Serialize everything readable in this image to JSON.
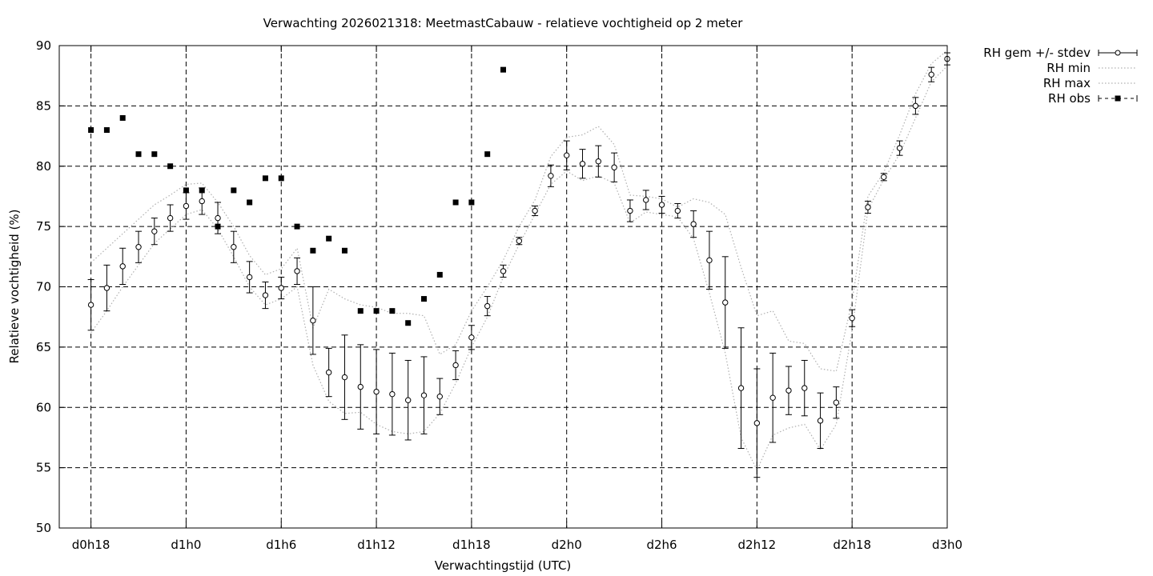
{
  "chart_data": {
    "type": "line",
    "title": "Verwachting 2026021318: MeetmastCabauw - relatieve vochtigheid op 2 meter",
    "xlabel": "Verwachtingstijd (UTC)",
    "ylabel": "Relatieve vochtigheid (%)",
    "ylim": [
      50,
      90
    ],
    "xlim": [
      16,
      72
    ],
    "x_unit": "hours since 2026-02-13 00:00 UTC",
    "grid": true,
    "legend_position": "outside-top-right",
    "x_ticks": [
      {
        "x": 18,
        "label": "d0h18"
      },
      {
        "x": 24,
        "label": "d1h0"
      },
      {
        "x": 30,
        "label": "d1h6"
      },
      {
        "x": 36,
        "label": "d1h12"
      },
      {
        "x": 42,
        "label": "d1h18"
      },
      {
        "x": 48,
        "label": "d2h0"
      },
      {
        "x": 54,
        "label": "d2h6"
      },
      {
        "x": 60,
        "label": "d2h12"
      },
      {
        "x": 66,
        "label": "d2h18"
      },
      {
        "x": 72,
        "label": "d3h0"
      }
    ],
    "y_ticks": [
      50,
      55,
      60,
      65,
      70,
      75,
      80,
      85,
      90
    ],
    "series": [
      {
        "name": "RH gem +/- stdev",
        "style": "errorbars",
        "color": "#000000",
        "x": [
          18,
          19,
          20,
          21,
          22,
          23,
          24,
          25,
          26,
          27,
          28,
          29,
          30,
          31,
          32,
          33,
          34,
          35,
          36,
          37,
          38,
          39,
          40,
          41,
          42,
          43,
          44,
          45,
          46,
          47,
          48,
          49,
          50,
          51,
          52,
          53,
          54,
          55,
          56,
          57,
          58,
          59,
          60,
          61,
          62,
          63,
          64,
          65,
          66,
          67,
          68,
          69,
          70,
          71,
          72
        ],
        "y": [
          68.5,
          69.9,
          71.7,
          73.3,
          74.6,
          75.7,
          76.7,
          77.1,
          75.7,
          73.3,
          70.8,
          69.3,
          69.9,
          71.3,
          67.2,
          62.9,
          62.5,
          61.7,
          61.3,
          61.1,
          60.6,
          61.0,
          60.9,
          63.5,
          65.8,
          68.4,
          71.3,
          73.8,
          76.3,
          79.2,
          80.9,
          80.2,
          80.4,
          79.9,
          76.3,
          77.2,
          76.8,
          76.3,
          75.2,
          72.2,
          68.7,
          61.6,
          58.7,
          60.8,
          61.4,
          61.6,
          58.9,
          60.4,
          67.4,
          76.6,
          79.1,
          81.5,
          85.0,
          87.6,
          88.9
        ],
        "err": [
          2.1,
          1.9,
          1.5,
          1.3,
          1.1,
          1.1,
          1.1,
          1.1,
          1.3,
          1.3,
          1.3,
          1.1,
          0.9,
          1.1,
          2.8,
          2.0,
          3.5,
          3.5,
          3.5,
          3.4,
          3.3,
          3.2,
          1.5,
          1.2,
          1.0,
          0.8,
          0.5,
          0.3,
          0.4,
          0.9,
          1.2,
          1.2,
          1.3,
          1.2,
          0.9,
          0.8,
          0.7,
          0.6,
          1.1,
          2.4,
          3.8,
          5.0,
          4.5,
          3.7,
          2.0,
          2.3,
          2.3,
          1.3,
          0.7,
          0.5,
          0.3,
          0.6,
          0.7,
          0.6,
          0.5
        ]
      },
      {
        "name": "RH min",
        "style": "dotted",
        "color": "#b0b0b0",
        "x": [
          18,
          19,
          20,
          21,
          22,
          23,
          24,
          25,
          26,
          27,
          28,
          29,
          30,
          31,
          32,
          33,
          34,
          35,
          36,
          37,
          38,
          39,
          40,
          41,
          42,
          43,
          44,
          45,
          46,
          47,
          48,
          49,
          50,
          51,
          52,
          53,
          54,
          55,
          56,
          57,
          58,
          59,
          60,
          61,
          62,
          63,
          64,
          65,
          66,
          67,
          68,
          69,
          70,
          71,
          72
        ],
        "y": [
          66.2,
          68.0,
          70.0,
          71.8,
          73.6,
          74.8,
          76.0,
          76.4,
          74.8,
          72.5,
          70.0,
          68.5,
          69.0,
          70.0,
          63.5,
          60.5,
          59.5,
          59.6,
          58.6,
          58.0,
          57.8,
          58.0,
          59.5,
          62.0,
          65.0,
          67.5,
          70.8,
          73.5,
          76.0,
          78.5,
          79.6,
          78.8,
          79.2,
          78.6,
          75.3,
          76.2,
          76.0,
          75.8,
          74.0,
          69.5,
          64.5,
          57.5,
          54.8,
          57.7,
          58.3,
          58.6,
          56.5,
          58.6,
          66.4,
          76.4,
          78.9,
          81.0,
          84.0,
          87.0,
          88.3
        ]
      },
      {
        "name": "RH max",
        "style": "dotted",
        "color": "#b0b0b0",
        "x": [
          18,
          19,
          20,
          21,
          22,
          23,
          24,
          25,
          26,
          27,
          28,
          29,
          30,
          31,
          32,
          33,
          34,
          35,
          36,
          37,
          38,
          39,
          40,
          41,
          42,
          43,
          44,
          45,
          46,
          47,
          48,
          49,
          50,
          51,
          52,
          53,
          54,
          55,
          56,
          57,
          58,
          59,
          60,
          61,
          62,
          63,
          64,
          65,
          66,
          67,
          68,
          69,
          70,
          71,
          72
        ],
        "y": [
          72.0,
          73.2,
          74.4,
          75.6,
          76.8,
          77.6,
          78.5,
          78.6,
          77.0,
          75.0,
          72.6,
          71.0,
          71.5,
          73.2,
          66.6,
          69.8,
          69.0,
          68.5,
          68.3,
          67.8,
          67.8,
          67.6,
          64.4,
          65.2,
          68.0,
          70.0,
          72.2,
          75.0,
          77.2,
          80.8,
          82.4,
          82.6,
          83.3,
          81.8,
          77.6,
          77.5,
          77.3,
          76.6,
          77.3,
          77.0,
          76.0,
          71.6,
          67.6,
          68.0,
          65.5,
          65.3,
          63.2,
          63.0,
          68.8,
          77.5,
          79.5,
          82.6,
          86.0,
          88.5,
          89.6
        ]
      },
      {
        "name": "RH obs",
        "style": "points",
        "marker": "filled-square",
        "color": "#000000",
        "x": [
          18,
          19,
          20,
          21,
          22,
          23,
          24,
          25,
          26,
          27,
          28,
          29,
          30,
          31,
          32,
          33,
          34,
          35,
          36,
          37,
          38,
          39,
          40,
          41,
          42,
          43,
          44
        ],
        "y": [
          83,
          83,
          84,
          81,
          81,
          80,
          78,
          78,
          75,
          78,
          77,
          79,
          79,
          75,
          73,
          74,
          73,
          68,
          68,
          68,
          67,
          69,
          71,
          77,
          77,
          81,
          88
        ]
      }
    ]
  }
}
